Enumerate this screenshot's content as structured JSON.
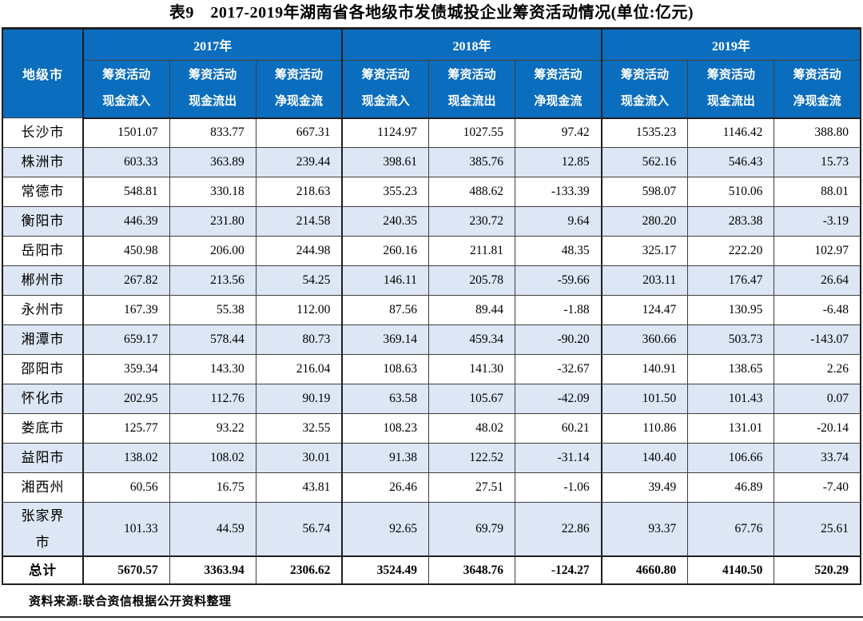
{
  "title": "表9　2017-2019年湖南省各地级市发债城投企业筹资活动情况(单位:亿元)",
  "table": {
    "corner_header": "地级市",
    "years": [
      {
        "label": "2017年"
      },
      {
        "label": "2018年"
      },
      {
        "label": "2019年"
      }
    ],
    "sub_header_line1": "筹资活动",
    "sub_header_line2": [
      "现金流入",
      "现金流出",
      "净现金流"
    ],
    "rows": [
      {
        "city": "长沙市",
        "values": [
          "1501.07",
          "833.77",
          "667.31",
          "1124.97",
          "1027.55",
          "97.42",
          "1535.23",
          "1146.42",
          "388.80"
        ]
      },
      {
        "city": "株洲市",
        "values": [
          "603.33",
          "363.89",
          "239.44",
          "398.61",
          "385.76",
          "12.85",
          "562.16",
          "546.43",
          "15.73"
        ]
      },
      {
        "city": "常德市",
        "values": [
          "548.81",
          "330.18",
          "218.63",
          "355.23",
          "488.62",
          "-133.39",
          "598.07",
          "510.06",
          "88.01"
        ]
      },
      {
        "city": "衡阳市",
        "values": [
          "446.39",
          "231.80",
          "214.58",
          "240.35",
          "230.72",
          "9.64",
          "280.20",
          "283.38",
          "-3.19"
        ]
      },
      {
        "city": "岳阳市",
        "values": [
          "450.98",
          "206.00",
          "244.98",
          "260.16",
          "211.81",
          "48.35",
          "325.17",
          "222.20",
          "102.97"
        ]
      },
      {
        "city": "郴州市",
        "values": [
          "267.82",
          "213.56",
          "54.25",
          "146.11",
          "205.78",
          "-59.66",
          "203.11",
          "176.47",
          "26.64"
        ]
      },
      {
        "city": "永州市",
        "values": [
          "167.39",
          "55.38",
          "112.00",
          "87.56",
          "89.44",
          "-1.88",
          "124.47",
          "130.95",
          "-6.48"
        ]
      },
      {
        "city": "湘潭市",
        "values": [
          "659.17",
          "578.44",
          "80.73",
          "369.14",
          "459.34",
          "-90.20",
          "360.66",
          "503.73",
          "-143.07"
        ]
      },
      {
        "city": "邵阳市",
        "values": [
          "359.34",
          "143.30",
          "216.04",
          "108.63",
          "141.30",
          "-32.67",
          "140.91",
          "138.65",
          "2.26"
        ]
      },
      {
        "city": "怀化市",
        "values": [
          "202.95",
          "112.76",
          "90.19",
          "63.58",
          "105.67",
          "-42.09",
          "101.50",
          "101.43",
          "0.07"
        ]
      },
      {
        "city": "娄底市",
        "values": [
          "125.77",
          "93.22",
          "32.55",
          "108.23",
          "48.02",
          "60.21",
          "110.86",
          "131.01",
          "-20.14"
        ]
      },
      {
        "city": "益阳市",
        "values": [
          "138.02",
          "108.02",
          "30.01",
          "91.38",
          "122.52",
          "-31.14",
          "140.40",
          "106.66",
          "33.74"
        ]
      },
      {
        "city": "湘西州",
        "values": [
          "60.56",
          "16.75",
          "43.81",
          "26.46",
          "27.51",
          "-1.06",
          "39.49",
          "46.89",
          "-7.40"
        ]
      },
      {
        "city": "张家界市",
        "values": [
          "101.33",
          "44.59",
          "56.74",
          "92.65",
          "69.79",
          "22.86",
          "93.37",
          "67.76",
          "25.61"
        ]
      },
      {
        "city": "总计",
        "total": true,
        "values": [
          "5670.57",
          "3363.94",
          "2306.62",
          "3524.49",
          "3648.76",
          "-124.27",
          "4660.80",
          "4140.50",
          "520.29"
        ]
      }
    ]
  },
  "footer": {
    "source": "资料来源:联合资信根据公开资料整理"
  },
  "colors": {
    "header_bg": "#0b6dbe",
    "stripe_bg": "#dce6f4",
    "header_text": "#ffffff"
  }
}
